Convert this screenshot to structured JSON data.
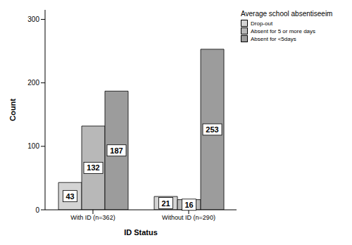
{
  "chart_data": {
    "type": "bar",
    "categories": [
      "With ID (n=362)",
      "Without ID (n=290)"
    ],
    "x_label": "ID Status",
    "y_label": "Count",
    "legend_title": "Average school absentiseeim",
    "series": [
      {
        "name": "Drop-out",
        "color": "#d4d4d4",
        "values": [
          43,
          21
        ]
      },
      {
        "name": "Absent for 5 or more days",
        "color": "#b8b8b8",
        "values": [
          132,
          16
        ]
      },
      {
        "name": "Absent for <5days",
        "color": "#9c9c9c",
        "values": [
          187,
          253
        ]
      }
    ],
    "ylim": [
      0,
      315
    ],
    "yticks": [
      0,
      100,
      200,
      300
    ],
    "grid": false,
    "legend": "upper right",
    "data_labels": true
  }
}
